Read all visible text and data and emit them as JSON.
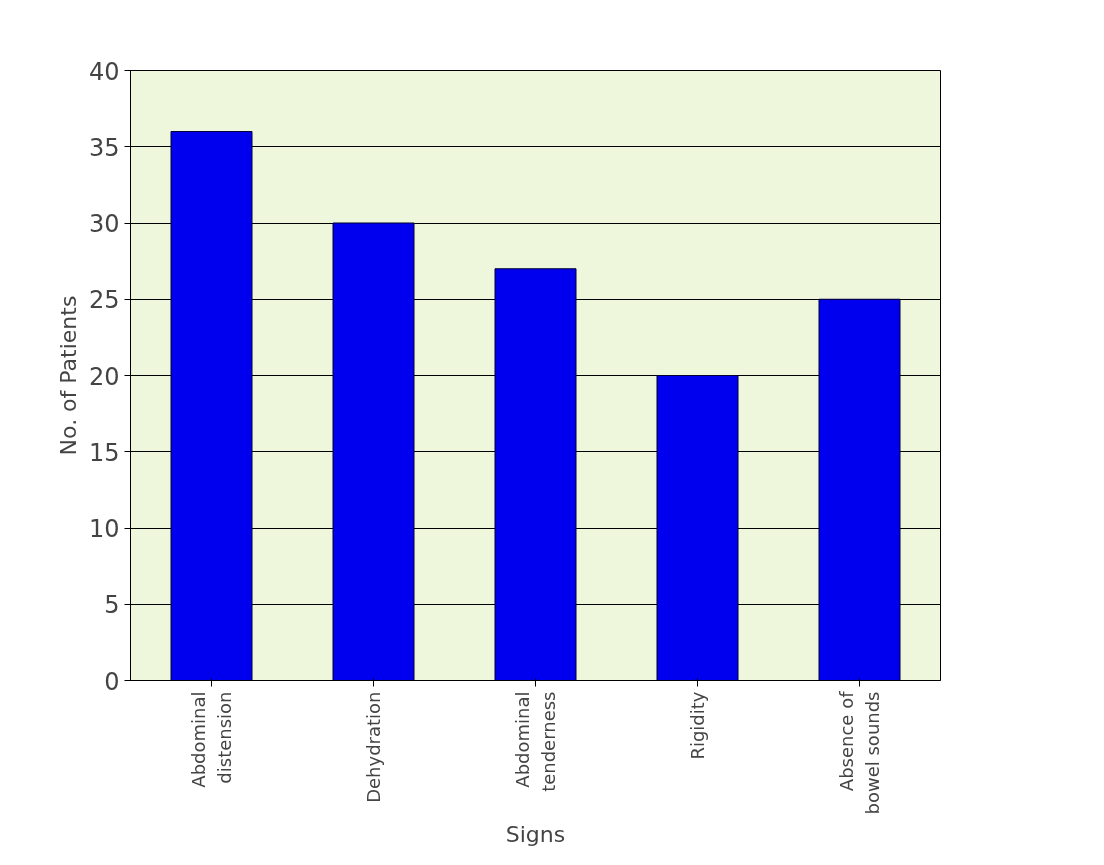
{
  "chart_data": {
    "type": "bar",
    "xlabel": "Signs",
    "ylabel": "No. of Patients",
    "categories": [
      "Abdominal distension",
      "Dehydration",
      "Abdominal tenderness",
      "Rigidity",
      "Absence of bowel sounds"
    ],
    "values": [
      36,
      30,
      27,
      20,
      25
    ],
    "color": "#0000ee",
    "ylim": [
      0,
      40
    ],
    "yticks": [
      0,
      5,
      10,
      15,
      20,
      25,
      30,
      35,
      40
    ],
    "grid": "y"
  }
}
